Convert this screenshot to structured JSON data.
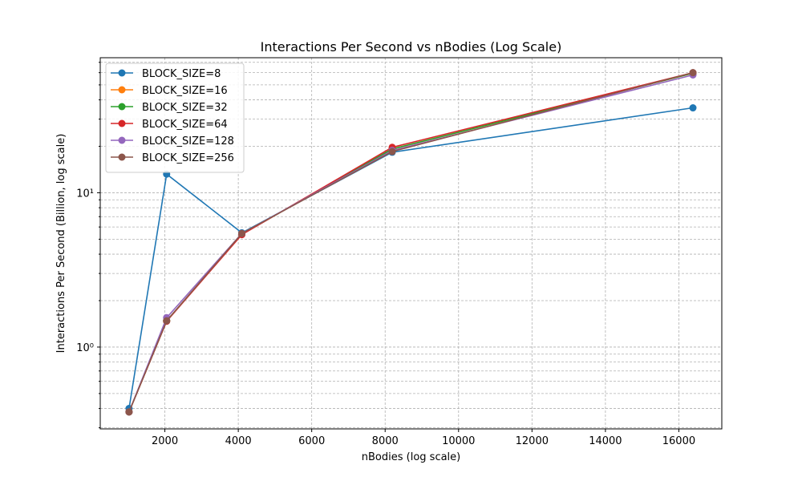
{
  "chart_data": {
    "type": "line",
    "title": "Interactions Per Second vs nBodies (Log Scale)",
    "xlabel": "nBodies (log scale)",
    "ylabel": "Interactions Per Second (Billion, log scale)",
    "x": [
      1024,
      2048,
      4096,
      8192,
      16384
    ],
    "xlim": [
      240,
      17170
    ],
    "ylim": [
      0.295,
      75
    ],
    "yscale": "log",
    "x_ticks": [
      2000,
      4000,
      6000,
      8000,
      10000,
      12000,
      14000,
      16000
    ],
    "y_ticks": [
      1,
      10
    ],
    "y_tick_labels": [
      "10⁰",
      "10¹"
    ],
    "grid": true,
    "legend_position": "top-left",
    "series": [
      {
        "name": "BLOCK_SIZE=8",
        "color": "#1f77b4",
        "values": [
          0.4,
          13.2,
          5.5,
          18.3,
          35.5
        ]
      },
      {
        "name": "BLOCK_SIZE=16",
        "color": "#ff7f0e",
        "values": [
          0.38,
          1.48,
          5.4,
          19.2,
          59.5
        ]
      },
      {
        "name": "BLOCK_SIZE=32",
        "color": "#2ca02c",
        "values": [
          0.38,
          1.48,
          5.4,
          19.2,
          59.5
        ]
      },
      {
        "name": "BLOCK_SIZE=64",
        "color": "#d62728",
        "values": [
          0.38,
          1.47,
          5.35,
          19.7,
          60.0
        ]
      },
      {
        "name": "BLOCK_SIZE=128",
        "color": "#9467bd",
        "values": [
          0.38,
          1.55,
          5.45,
          18.8,
          58.0
        ]
      },
      {
        "name": "BLOCK_SIZE=256",
        "color": "#8c564b",
        "values": [
          0.38,
          1.48,
          5.45,
          18.5,
          60.0
        ]
      }
    ]
  }
}
